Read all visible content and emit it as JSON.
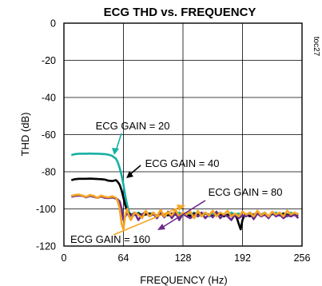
{
  "chart_data": {
    "type": "line",
    "title": "ECG THD vs. FREQUENCY",
    "xlabel": "FREQUENCY (Hz)",
    "ylabel": "THD (dB)",
    "xlim": [
      0,
      256
    ],
    "ylim": [
      -120,
      0
    ],
    "xticks": [
      "0",
      "64",
      "128",
      "192",
      "256"
    ],
    "yticks": [
      "0",
      "-20",
      "-40",
      "-60",
      "-80",
      "-100",
      "-120"
    ],
    "grid": true,
    "figure_code": "toc27",
    "series": [
      {
        "name": "ECG GAIN = 20",
        "color": "#16b0a5",
        "x": [
          8,
          12,
          16,
          20,
          24,
          28,
          32,
          36,
          40,
          44,
          48,
          52,
          56,
          58,
          60,
          62,
          64,
          66,
          68,
          70,
          72,
          74,
          76,
          80,
          84,
          88,
          92,
          96,
          100,
          104,
          108,
          112,
          116,
          120,
          124,
          128,
          132,
          136,
          140,
          144,
          148,
          152,
          156,
          160,
          164,
          168,
          172,
          176,
          180,
          184,
          188,
          192,
          196,
          200,
          204,
          208,
          212,
          216,
          220,
          224,
          228,
          232,
          236,
          240,
          244,
          248,
          252
        ],
        "y": [
          -71,
          -70.5,
          -70.3,
          -70.3,
          -70.3,
          -70.2,
          -70.3,
          -70.3,
          -70.4,
          -70.5,
          -70.8,
          -71.5,
          -73,
          -75,
          -78,
          -82,
          -87,
          -93,
          -98,
          -101.5,
          -103.5,
          -104,
          -103,
          -102,
          -103.5,
          -102.5,
          -103,
          -102,
          -104,
          -102.5,
          -103,
          -102,
          -104,
          -103,
          -102,
          -103.5,
          -102.5,
          -103,
          -102,
          -104,
          -103,
          -102,
          -104,
          -102.5,
          -103,
          -102,
          -103,
          -104,
          -102,
          -103,
          -102.5,
          -104,
          -103,
          -102,
          -103.5,
          -102.5,
          -103,
          -102,
          -104,
          -103,
          -102,
          -103,
          -102.5,
          -104,
          -102,
          -103,
          -102.5
        ]
      },
      {
        "name": "ECG GAIN = 40",
        "color": "#000000",
        "x": [
          8,
          12,
          16,
          20,
          24,
          28,
          32,
          36,
          40,
          44,
          48,
          52,
          56,
          58,
          60,
          62,
          64,
          66,
          68,
          70,
          72,
          74,
          76,
          80,
          84,
          88,
          92,
          96,
          100,
          104,
          108,
          112,
          116,
          120,
          124,
          128,
          132,
          136,
          140,
          144,
          148,
          152,
          156,
          160,
          164,
          168,
          172,
          176,
          180,
          184,
          186,
          188,
          190,
          192,
          194,
          196,
          200,
          204,
          208,
          212,
          216,
          220,
          224,
          228,
          232,
          236,
          240,
          244,
          248,
          252
        ],
        "y": [
          -84.5,
          -84,
          -83.8,
          -83.8,
          -83.8,
          -83.7,
          -83.8,
          -83.9,
          -84,
          -84.2,
          -84.8,
          -85,
          -84.5,
          -85.5,
          -87,
          -90,
          -94,
          -98,
          -101,
          -102.5,
          -103.2,
          -103.5,
          -103,
          -102.5,
          -103.5,
          -103,
          -102.5,
          -103,
          -103.5,
          -102.5,
          -103,
          -103.5,
          -102.5,
          -103,
          -103.5,
          -102.5,
          -103,
          -104,
          -102.5,
          -103,
          -103.5,
          -102.5,
          -103,
          -104,
          -102.5,
          -103,
          -104,
          -103,
          -103.5,
          -103,
          -105,
          -108,
          -111,
          -106,
          -103.5,
          -103,
          -104,
          -103,
          -102.5,
          -103.5,
          -103,
          -104,
          -102.5,
          -103,
          -103.5,
          -102.5,
          -103,
          -104,
          -103,
          -103.5
        ]
      },
      {
        "name": "ECG GAIN = 80",
        "color": "#6d2b8c",
        "x": [
          8,
          12,
          16,
          20,
          24,
          28,
          32,
          36,
          40,
          44,
          48,
          52,
          56,
          58,
          60,
          62,
          64,
          66,
          68,
          70,
          72,
          76,
          80,
          84,
          88,
          92,
          96,
          100,
          104,
          108,
          112,
          116,
          120,
          124,
          128,
          132,
          136,
          140,
          144,
          148,
          152,
          156,
          160,
          164,
          168,
          172,
          176,
          180,
          184,
          188,
          192,
          196,
          200,
          204,
          208,
          212,
          216,
          220,
          224,
          228,
          232,
          236,
          240,
          244,
          248,
          252
        ],
        "y": [
          -93.5,
          -93,
          -92.8,
          -93,
          -93.8,
          -93,
          -93.5,
          -94,
          -93.3,
          -94,
          -94.2,
          -93.8,
          -94.5,
          -95,
          -96,
          -100,
          -106,
          -104,
          -102,
          -104,
          -103.5,
          -102,
          -106,
          -103,
          -101.5,
          -104,
          -102.5,
          -105,
          -102,
          -104.5,
          -101.5,
          -105,
          -102,
          -106,
          -102.5,
          -104,
          -105,
          -103,
          -104,
          -102,
          -105,
          -103,
          -104.5,
          -101.5,
          -105,
          -103,
          -104,
          -106,
          -103,
          -105,
          -103.5,
          -104,
          -102,
          -105.5,
          -102.5,
          -104,
          -103,
          -105,
          -102,
          -104,
          -103,
          -105,
          -103.5,
          -104,
          -103,
          -105
        ]
      },
      {
        "name": "ECG GAIN = 160",
        "color": "#f5a623",
        "x": [
          8,
          12,
          16,
          20,
          24,
          28,
          32,
          36,
          40,
          44,
          48,
          52,
          56,
          58,
          60,
          62,
          64,
          66,
          68,
          70,
          72,
          76,
          80,
          84,
          88,
          92,
          96,
          100,
          104,
          108,
          112,
          116,
          120,
          124,
          128,
          132,
          136,
          140,
          144,
          148,
          152,
          156,
          160,
          164,
          168,
          172,
          176,
          180,
          184,
          188,
          192,
          196,
          200,
          204,
          208,
          212,
          216,
          220,
          224,
          228,
          232,
          236,
          240,
          244,
          248,
          252
        ],
        "y": [
          -93,
          -92.5,
          -92.3,
          -92.8,
          -93.5,
          -92.5,
          -93,
          -94,
          -92.8,
          -93.5,
          -93.8,
          -93.2,
          -94,
          -96,
          -100,
          -108,
          -111,
          -103,
          -100,
          -104,
          -106,
          -102,
          -103,
          -105,
          -101,
          -104,
          -102,
          -104,
          -100.5,
          -104,
          -102,
          -103.5,
          -100.5,
          -104,
          -102,
          -103,
          -101.5,
          -105,
          -101,
          -104,
          -102,
          -103.5,
          -101,
          -104,
          -102,
          -103,
          -101,
          -104,
          -102.5,
          -104,
          -101.5,
          -103,
          -102,
          -104,
          -101,
          -103.5,
          -102,
          -104,
          -101.5,
          -103,
          -102,
          -104,
          -101,
          -103,
          -102,
          -103
        ]
      }
    ],
    "annotations": [
      {
        "text": "ECG GAIN = 20",
        "series": 0
      },
      {
        "text": "ECG GAIN = 40",
        "series": 1
      },
      {
        "text": "ECG GAIN = 80",
        "series": 2
      },
      {
        "text": "ECG GAIN = 160",
        "series": 3
      }
    ]
  }
}
